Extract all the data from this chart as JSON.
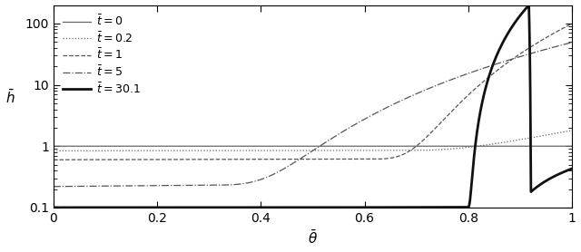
{
  "xlabel": "$\\bar{\\theta}$",
  "ylabel": "$\\bar{h}$",
  "xlim": [
    0,
    1.0
  ],
  "ylim": [
    0.1,
    200
  ],
  "legend_labels": [
    "$\\bar{t} = 0$",
    "$\\bar{t} = 0.2$",
    "$\\bar{t} = 1$",
    "$\\bar{t} = 5$",
    "$\\bar{t} = 30.1$"
  ],
  "line_styles": [
    "-",
    ":",
    "--",
    "-.",
    "-"
  ],
  "line_widths": [
    0.9,
    0.9,
    0.9,
    0.9,
    2.0
  ],
  "line_colors": [
    "#666666",
    "#666666",
    "#555555",
    "#555555",
    "#111111"
  ],
  "bg_color": "#ffffff",
  "figsize": [
    6.4,
    2.78
  ],
  "dpi": 100
}
